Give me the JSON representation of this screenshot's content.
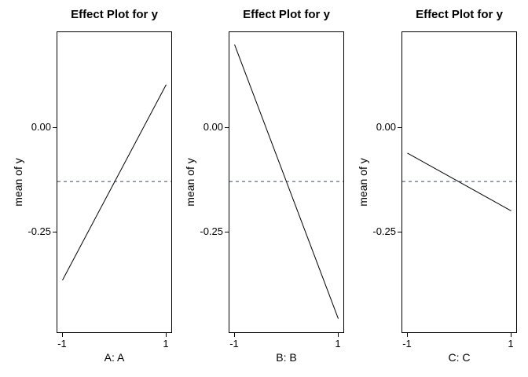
{
  "figure": {
    "kind": "effects-plot",
    "background_color": "#ffffff",
    "text_color": "#000000",
    "panel_border_color": "#000000"
  },
  "panels": [
    {
      "title": "Effect Plot for y",
      "xlabel": "A: A",
      "ylabel": "mean of y"
    },
    {
      "title": "Effect Plot for y",
      "xlabel": "B: B",
      "ylabel": "mean of y"
    },
    {
      "title": "Effect Plot for y",
      "xlabel": "C: C",
      "ylabel": "mean of y"
    }
  ],
  "axes": {
    "y_tick_labels": [
      "0.00",
      "-0.25"
    ],
    "x_tick_labels": [
      "-1",
      "1"
    ]
  },
  "chart_data": [
    {
      "type": "line",
      "title": "Effect Plot for y",
      "xlabel": "A: A",
      "ylabel": "mean of y",
      "x": [
        -1,
        1
      ],
      "y": [
        -0.366,
        0.102
      ],
      "reference_line_y": -0.13,
      "reference_line_style": "dashed",
      "reference_line_color": "#334a6e",
      "line_color": "#000000",
      "x_ticks": [
        -1,
        1
      ],
      "y_ticks": [
        0.0,
        -0.25
      ],
      "xlim": [
        -1.11,
        1.11
      ],
      "ylim": [
        -0.49,
        0.23
      ],
      "grid": false,
      "legend": false
    },
    {
      "type": "line",
      "title": "Effect Plot for y",
      "xlabel": "B: B",
      "ylabel": "mean of y",
      "x": [
        -1,
        1
      ],
      "y": [
        0.198,
        -0.458
      ],
      "reference_line_y": -0.13,
      "reference_line_style": "dashed",
      "reference_line_color": "#334a6e",
      "line_color": "#000000",
      "x_ticks": [
        -1,
        1
      ],
      "y_ticks": [
        0.0,
        -0.25
      ],
      "xlim": [
        -1.11,
        1.11
      ],
      "ylim": [
        -0.49,
        0.23
      ],
      "grid": false,
      "legend": false
    },
    {
      "type": "line",
      "title": "Effect Plot for y",
      "xlabel": "C: C",
      "ylabel": "mean of y",
      "x": [
        -1,
        1
      ],
      "y": [
        -0.062,
        -0.2
      ],
      "reference_line_y": -0.13,
      "reference_line_style": "dashed",
      "reference_line_color": "#334a6e",
      "line_color": "#000000",
      "x_ticks": [
        -1,
        1
      ],
      "y_ticks": [
        0.0,
        -0.25
      ],
      "xlim": [
        -1.11,
        1.11
      ],
      "ylim": [
        -0.49,
        0.23
      ],
      "grid": false,
      "legend": false
    }
  ]
}
